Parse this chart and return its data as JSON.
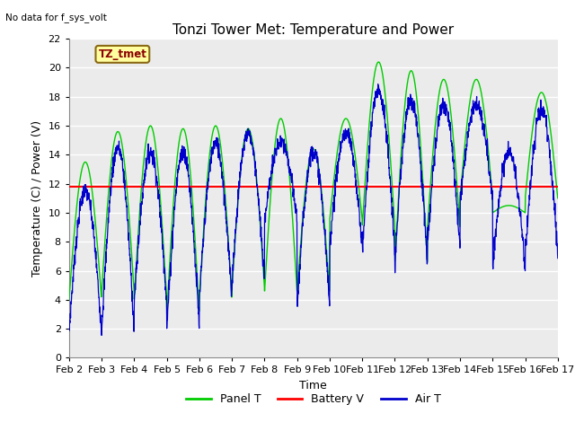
{
  "title": "Tonzi Tower Met: Temperature and Power",
  "no_data_text": "No data for f_sys_volt",
  "station_label": "TZ_tmet",
  "xlabel": "Time",
  "ylabel": "Temperature (C) / Power (V)",
  "ylim": [
    0,
    22
  ],
  "yticks": [
    0,
    2,
    4,
    6,
    8,
    10,
    12,
    14,
    16,
    18,
    20,
    22
  ],
  "xtick_positions": [
    2,
    3,
    4,
    5,
    6,
    7,
    8,
    9,
    10,
    11,
    12,
    13,
    14,
    15,
    16,
    17
  ],
  "xtick_labels": [
    "Feb 2",
    "Feb 3",
    "Feb 4",
    "Feb 5",
    "Feb 6",
    "Feb 7",
    "Feb 8",
    "Feb 9",
    "Feb 10",
    "Feb 11",
    "Feb 12",
    "Feb 13",
    "Feb 14",
    "Feb 15",
    "Feb 16",
    "Feb 17"
  ],
  "battery_v": 11.8,
  "panel_color": "#00CC00",
  "battery_color": "#FF0000",
  "air_color": "#0000CC",
  "fig_bg_color": "#FFFFFF",
  "plot_bg_color": "#EBEBEB",
  "grid_color": "#FFFFFF",
  "legend_entries": [
    "Panel T",
    "Battery V",
    "Air T"
  ],
  "title_fontsize": 11,
  "axis_label_fontsize": 9,
  "tick_fontsize": 8,
  "legend_fontsize": 9,
  "panel_day_peaks": [
    13.5,
    15.6,
    16.0,
    15.8,
    16.0,
    15.8,
    16.5,
    14.4,
    16.5,
    20.4,
    19.8,
    19.2,
    19.2,
    10.5,
    18.3,
    13.2
  ],
  "panel_day_mins": [
    4.0,
    4.5,
    4.0,
    3.0,
    4.0,
    4.8,
    4.5,
    4.5,
    9.5,
    9.0,
    6.5,
    9.0,
    11.0,
    10.0,
    11.0,
    11.0
  ],
  "air_day_peaks": [
    11.5,
    14.5,
    14.2,
    14.2,
    14.8,
    15.5,
    14.8,
    14.3,
    15.5,
    18.5,
    17.8,
    17.5,
    17.5,
    14.2,
    17.1,
    12.5
  ],
  "air_day_mins": [
    1.8,
    1.9,
    3.8,
    2.0,
    4.0,
    5.2,
    9.5,
    3.5,
    7.8,
    7.2,
    6.5,
    7.7,
    10.8,
    6.3,
    7.2,
    9.5
  ]
}
